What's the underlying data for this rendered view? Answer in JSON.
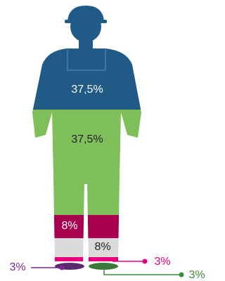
{
  "figure": {
    "labels": {
      "torso": "37,5%",
      "waist": "37,5%",
      "left_leg": "8%",
      "right_leg": "8%",
      "left_foot": "3%",
      "right_ankle": "3%",
      "right_shoe": "3%"
    }
  }
}
